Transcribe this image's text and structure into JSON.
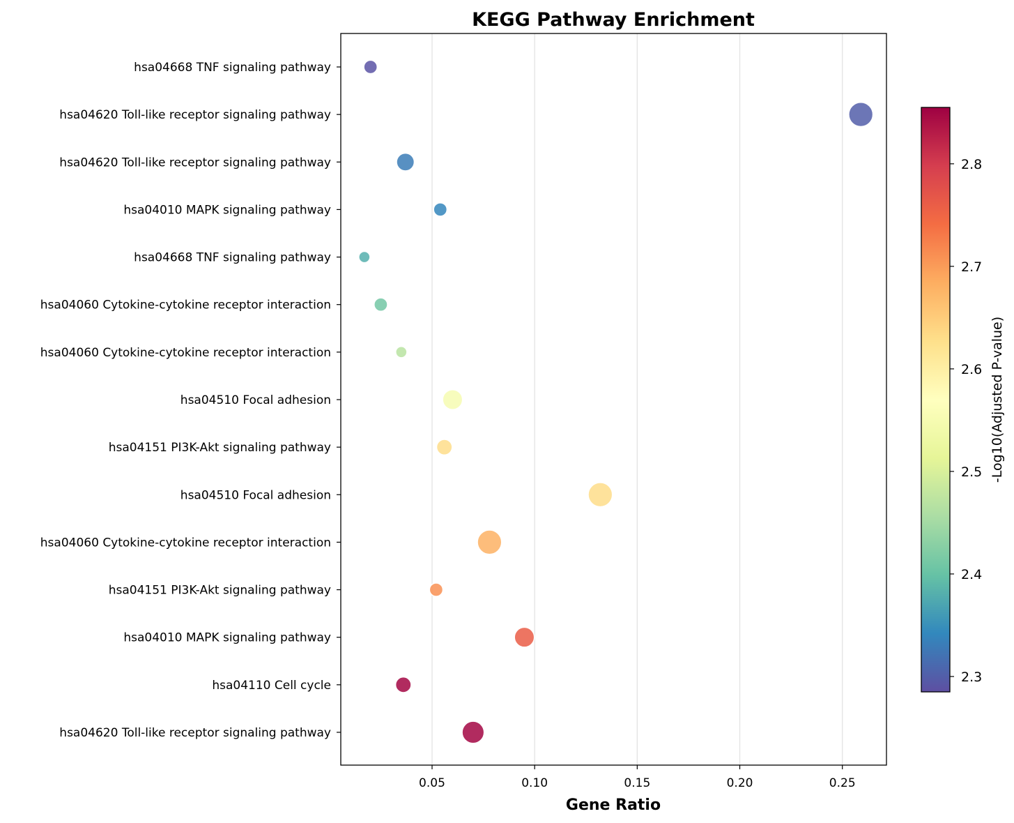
{
  "chart_data": {
    "type": "scatter",
    "title": "KEGG Pathway Enrichment",
    "xlabel": "Gene Ratio",
    "ylabel": "",
    "xlim": [
      0.0055,
      0.2715
    ],
    "xticks": [
      0.05,
      0.1,
      0.15,
      0.2,
      0.25
    ],
    "xtick_labels": [
      "0.05",
      "0.10",
      "0.15",
      "0.20",
      "0.25"
    ],
    "grid": "vertical",
    "categories": [
      "hsa04668 TNF signaling pathway",
      "hsa04620 Toll-like receptor signaling pathway",
      "hsa04620 Toll-like receptor signaling pathway",
      "hsa04010 MAPK signaling pathway",
      "hsa04668 TNF signaling pathway",
      "hsa04060 Cytokine-cytokine receptor interaction",
      "hsa04060 Cytokine-cytokine receptor interaction",
      "hsa04510 Focal adhesion",
      "hsa04151 PI3K-Akt signaling pathway",
      "hsa04510 Focal adhesion",
      "hsa04060 Cytokine-cytokine receptor interaction",
      "hsa04151 PI3K-Akt signaling pathway",
      "hsa04010 MAPK signaling pathway",
      "hsa04110 Cell cycle",
      "hsa04620 Toll-like receptor signaling pathway"
    ],
    "points": [
      {
        "x": 0.02,
        "neglog10_padj": 2.29,
        "size": 3
      },
      {
        "x": 0.259,
        "neglog10_padj": 2.3,
        "size": 8
      },
      {
        "x": 0.037,
        "neglog10_padj": 2.33,
        "size": 5
      },
      {
        "x": 0.054,
        "neglog10_padj": 2.34,
        "size": 3
      },
      {
        "x": 0.017,
        "neglog10_padj": 2.38,
        "size": 2
      },
      {
        "x": 0.025,
        "neglog10_padj": 2.41,
        "size": 3
      },
      {
        "x": 0.035,
        "neglog10_padj": 2.47,
        "size": 2
      },
      {
        "x": 0.06,
        "neglog10_padj": 2.55,
        "size": 6
      },
      {
        "x": 0.056,
        "neglog10_padj": 2.63,
        "size": 4
      },
      {
        "x": 0.132,
        "neglog10_padj": 2.63,
        "size": 8
      },
      {
        "x": 0.078,
        "neglog10_padj": 2.68,
        "size": 8
      },
      {
        "x": 0.052,
        "neglog10_padj": 2.71,
        "size": 3
      },
      {
        "x": 0.095,
        "neglog10_padj": 2.76,
        "size": 6
      },
      {
        "x": 0.036,
        "neglog10_padj": 2.85,
        "size": 4
      },
      {
        "x": 0.07,
        "neglog10_padj": 2.85,
        "size": 7
      }
    ],
    "colorbar": {
      "label": "-Log10(Adjusted P-value)",
      "range": [
        2.285,
        2.855
      ],
      "ticks": [
        2.3,
        2.4,
        2.5,
        2.6,
        2.7,
        2.8
      ],
      "tick_labels": [
        "2.3",
        "2.4",
        "2.5",
        "2.6",
        "2.7",
        "2.8"
      ],
      "colormap": "RdYlBu_r",
      "stops": [
        "#5e4fa2",
        "#3288bd",
        "#66c2a5",
        "#abdda4",
        "#e6f598",
        "#ffffbf",
        "#fee08b",
        "#fdae61",
        "#f46d43",
        "#d53e4f",
        "#9e0142"
      ]
    }
  }
}
